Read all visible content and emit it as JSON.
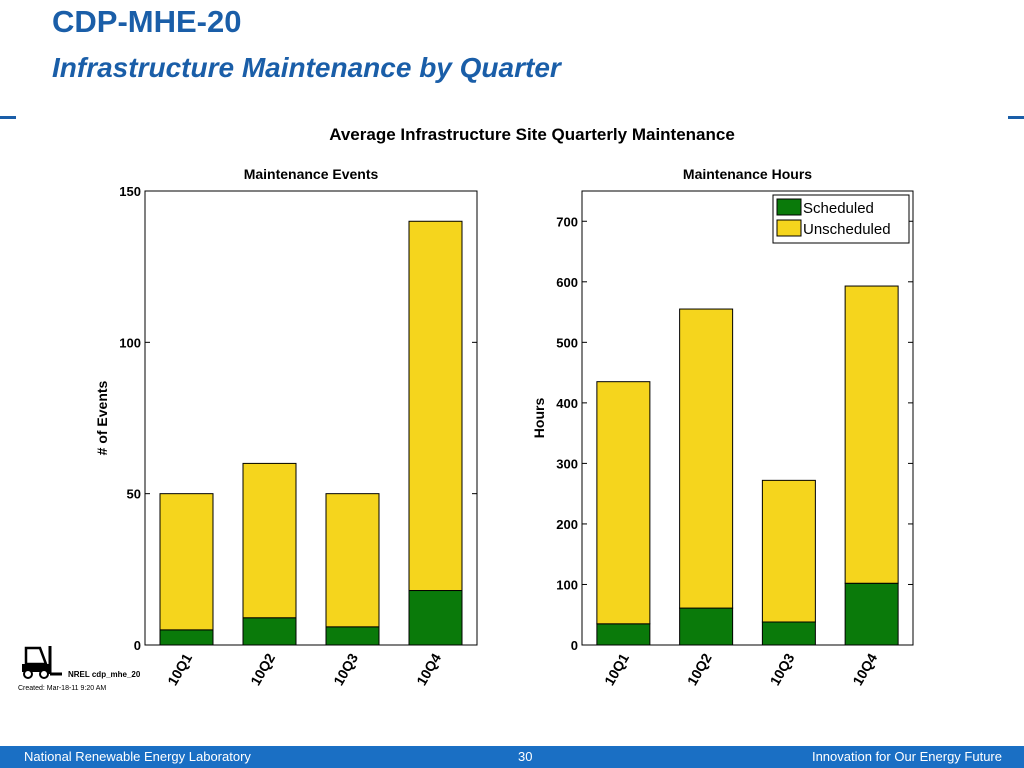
{
  "slide": {
    "title": "CDP-MHE-20",
    "subtitle": "Infrastructure Maintenance by Quarter"
  },
  "figure": {
    "title": "Average Infrastructure Site Quarterly Maintenance",
    "tag": "NREL cdp_mhe_20",
    "created": "Created: Mar-18-11  9:20 AM"
  },
  "colors": {
    "brand_blue": "#1a5ea8",
    "footer_blue": "#1a6fc4",
    "scheduled": "#0a7a0a",
    "unscheduled": "#f5d51d"
  },
  "chart_data": [
    {
      "type": "bar",
      "stacked": true,
      "title": "Maintenance Events",
      "xlabel": "",
      "ylabel": "# of Events",
      "categories": [
        "10Q1",
        "10Q2",
        "10Q3",
        "10Q4"
      ],
      "series": [
        {
          "name": "Scheduled",
          "values": [
            5,
            9,
            6,
            18
          ]
        },
        {
          "name": "Unscheduled",
          "values": [
            45,
            51,
            44,
            122
          ]
        }
      ],
      "ylim": [
        0,
        150
      ],
      "yticks": [
        0,
        50,
        100,
        150
      ],
      "legend": "none",
      "grid": false
    },
    {
      "type": "bar",
      "stacked": true,
      "title": "Maintenance Hours",
      "xlabel": "",
      "ylabel": "Hours",
      "categories": [
        "10Q1",
        "10Q2",
        "10Q3",
        "10Q4"
      ],
      "series": [
        {
          "name": "Scheduled",
          "values": [
            35,
            61,
            38,
            102
          ]
        },
        {
          "name": "Unscheduled",
          "values": [
            400,
            494,
            234,
            491
          ]
        }
      ],
      "ylim": [
        0,
        750
      ],
      "yticks": [
        0,
        100,
        200,
        300,
        400,
        500,
        600,
        700
      ],
      "legend": "top-right",
      "grid": false
    }
  ],
  "footer": {
    "left": "National Renewable Energy Laboratory",
    "page": "30",
    "right": "Innovation for Our Energy Future"
  }
}
